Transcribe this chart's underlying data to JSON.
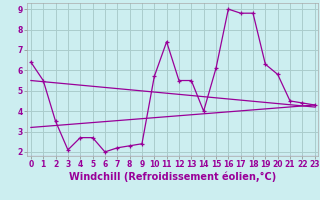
{
  "xlabel": "Windchill (Refroidissement éolien,°C)",
  "background_color": "#cceef0",
  "grid_color": "#aacccc",
  "line_color": "#990099",
  "x_values": [
    0,
    1,
    2,
    3,
    4,
    5,
    6,
    7,
    8,
    9,
    10,
    11,
    12,
    13,
    14,
    15,
    16,
    17,
    18,
    19,
    20,
    21,
    22,
    23
  ],
  "line1": [
    6.4,
    5.5,
    3.5,
    2.1,
    2.7,
    2.7,
    2.0,
    2.2,
    2.3,
    2.4,
    5.7,
    7.4,
    5.5,
    5.5,
    4.0,
    6.1,
    9.0,
    8.8,
    8.8,
    6.3,
    5.8,
    4.5,
    4.4,
    4.3
  ],
  "line2_x": [
    0,
    23
  ],
  "line2_y": [
    3.2,
    4.3
  ],
  "line3_x": [
    0,
    23
  ],
  "line3_y": [
    5.5,
    4.2
  ],
  "xlim": [
    -0.3,
    23.3
  ],
  "ylim": [
    1.8,
    9.3
  ],
  "yticks": [
    2,
    3,
    4,
    5,
    6,
    7,
    8,
    9
  ],
  "xticks": [
    0,
    1,
    2,
    3,
    4,
    5,
    6,
    7,
    8,
    9,
    10,
    11,
    12,
    13,
    14,
    15,
    16,
    17,
    18,
    19,
    20,
    21,
    22,
    23
  ],
  "tick_fontsize": 5.5,
  "label_fontsize": 7.0,
  "xlabel_color": "#990099",
  "xlabel_fontweight": "bold"
}
